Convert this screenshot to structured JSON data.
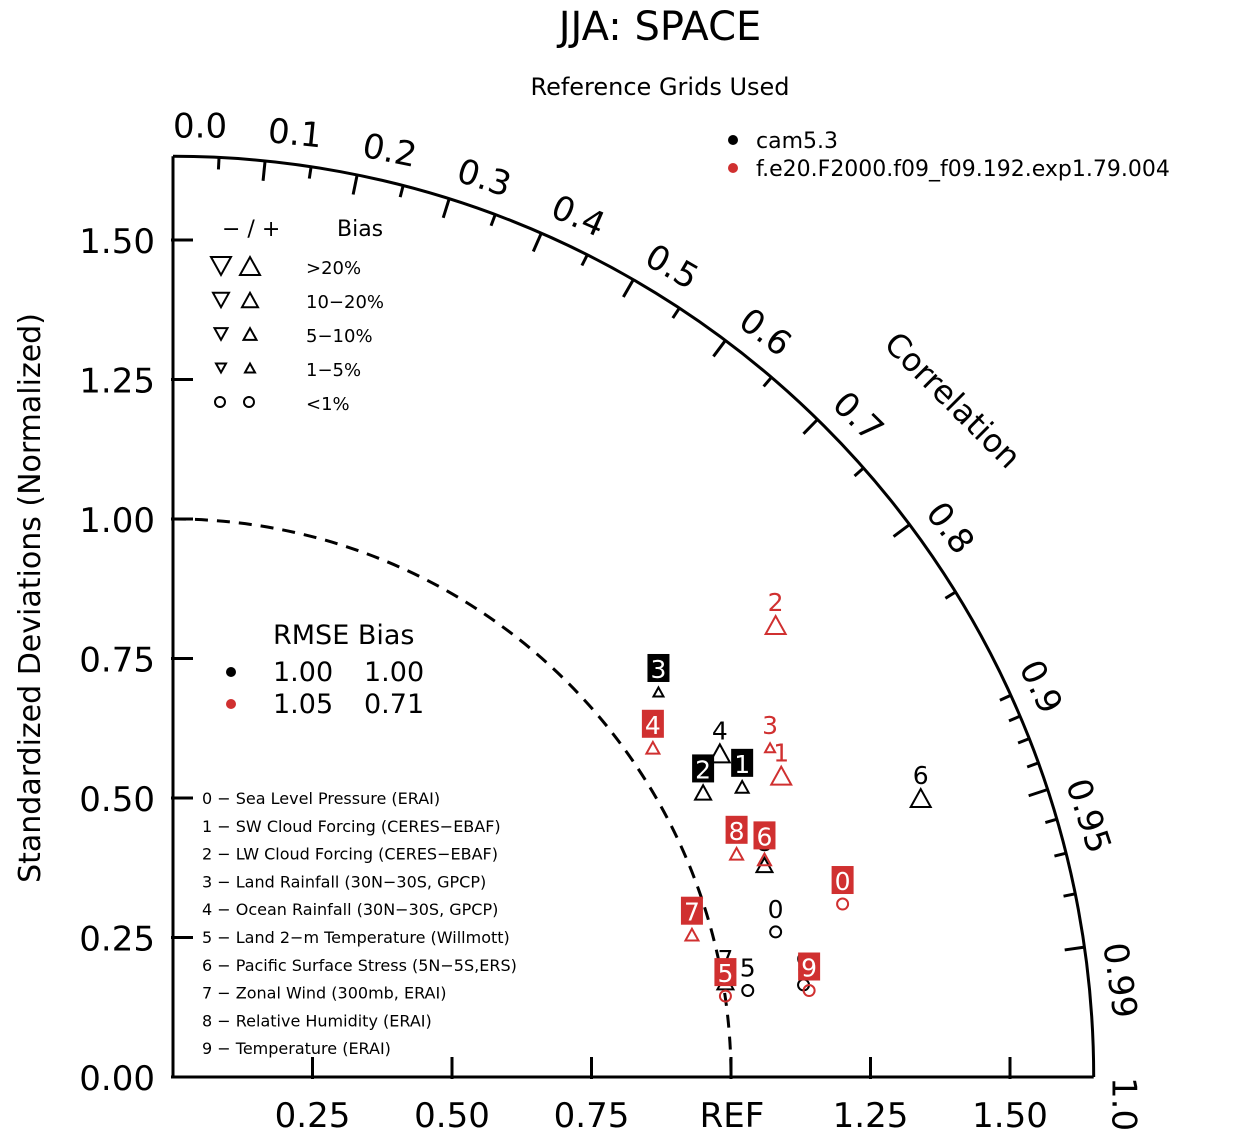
{
  "chart_data": {
    "type": "scatter",
    "subtype": "taylor-diagram",
    "title": "JJA: SPACE",
    "subtitle": "Reference Grids Used",
    "ylabel": "Standardized Deviations (Normalized)",
    "correlation_label": "Correlation",
    "ref_label": "REF",
    "std_range": [
      0,
      1.65
    ],
    "std_ticks": [
      "0.00",
      "0.25",
      "0.50",
      "0.75",
      "1.00",
      "1.25",
      "1.50"
    ],
    "x_ticks": [
      "0.25",
      "0.50",
      "0.75",
      "REF",
      "1.25",
      "1.50"
    ],
    "corr_labels": [
      "0.0",
      "0.1",
      "0.2",
      "0.3",
      "0.4",
      "0.5",
      "0.6",
      "0.7",
      "0.8",
      "0.9",
      "0.95",
      "0.99",
      "1.0"
    ],
    "cases": [
      {
        "name": "cam5.3",
        "color": "#000000"
      },
      {
        "name": "f.e20.F2000.f09_f09.192.exp1.79.004",
        "color": "#d03030"
      }
    ],
    "bias_legend": {
      "header_sign": "− / +",
      "header_bias": "Bias",
      "rows": [
        ">20%",
        "10−20%",
        "5−10%",
        "1−5%",
        "<1%"
      ]
    },
    "rmse_legend": {
      "header": "RMSE Bias",
      "rows": [
        {
          "case": "cam5.3",
          "color": "#000000",
          "rmse": "1.00",
          "bias": "1.00"
        },
        {
          "case": "f.e20.F2000.f09_f09.192.exp1.79.004",
          "color": "#d03030",
          "rmse": "1.05",
          "bias": "0.71"
        }
      ]
    },
    "variables": [
      "0 − Sea Level Pressure (ERAI)",
      "1 − SW Cloud Forcing (CERES−EBAF)",
      "2 − LW Cloud Forcing (CERES−EBAF)",
      "3 − Land Rainfall (30N−30S, GPCP)",
      "4 − Ocean Rainfall (30N−30S, GPCP)",
      "5 − Land 2−m Temperature (Willmott)",
      "6 − Pacific Surface Stress (5N−5S,ERS)",
      "7 − Zonal Wind (300mb, ERAI)",
      "8 − Relative Humidity (ERAI)",
      "9 − Temperature (ERAI)"
    ],
    "series": [
      {
        "name": "cam5.3",
        "color": "#000000",
        "points": [
          {
            "id": "0",
            "x": 1.08,
            "y": 0.26,
            "marker": "circle",
            "label_style": "plain"
          },
          {
            "id": "1",
            "x": 1.02,
            "y": 0.52,
            "marker": "triangle-up-small",
            "label_style": "box"
          },
          {
            "id": "2",
            "x": 0.95,
            "y": 0.51,
            "marker": "triangle-up-medium",
            "label_style": "box"
          },
          {
            "id": "3",
            "x": 0.87,
            "y": 0.69,
            "marker": "triangle-up-tiny",
            "label_style": "box"
          },
          {
            "id": "4",
            "x": 0.98,
            "y": 0.58,
            "marker": "triangle-up-large",
            "label_style": "plain"
          },
          {
            "id": "5",
            "x": 1.03,
            "y": 0.155,
            "marker": "circle",
            "label_style": "plain"
          },
          {
            "id": "6",
            "x": 1.34,
            "y": 0.5,
            "marker": "triangle-up-large",
            "label_style": "plain"
          },
          {
            "id": "7",
            "x": 0.99,
            "y": 0.17,
            "marker": "triangle-up-medium",
            "label_style": "plain"
          },
          {
            "id": "8",
            "x": 1.06,
            "y": 0.38,
            "marker": "triangle-up-medium",
            "label_style": "plain"
          },
          {
            "id": "9",
            "x": 1.13,
            "y": 0.165,
            "marker": "circle",
            "label_style": "plain"
          }
        ]
      },
      {
        "name": "f.e20.F2000.f09_f09.192.exp1.79.004",
        "color": "#d03030",
        "points": [
          {
            "id": "0",
            "x": 1.2,
            "y": 0.31,
            "marker": "circle",
            "label_style": "box"
          },
          {
            "id": "1",
            "x": 1.09,
            "y": 0.54,
            "marker": "triangle-up-large",
            "label_style": "plain"
          },
          {
            "id": "2",
            "x": 1.08,
            "y": 0.81,
            "marker": "triangle-up-large",
            "label_style": "plain"
          },
          {
            "id": "3",
            "x": 1.07,
            "y": 0.59,
            "marker": "triangle-up-tiny",
            "label_style": "plain"
          },
          {
            "id": "4",
            "x": 0.86,
            "y": 0.59,
            "marker": "triangle-up-small",
            "label_style": "box"
          },
          {
            "id": "5",
            "x": 0.99,
            "y": 0.145,
            "marker": "circle",
            "label_style": "box"
          },
          {
            "id": "6",
            "x": 1.06,
            "y": 0.39,
            "marker": "triangle-up-small",
            "label_style": "box"
          },
          {
            "id": "7",
            "x": 0.93,
            "y": 0.255,
            "marker": "triangle-up-small",
            "label_style": "box"
          },
          {
            "id": "8",
            "x": 1.01,
            "y": 0.4,
            "marker": "triangle-up-small",
            "label_style": "box"
          },
          {
            "id": "9",
            "x": 1.14,
            "y": 0.155,
            "marker": "circle",
            "label_style": "box"
          }
        ]
      }
    ]
  }
}
